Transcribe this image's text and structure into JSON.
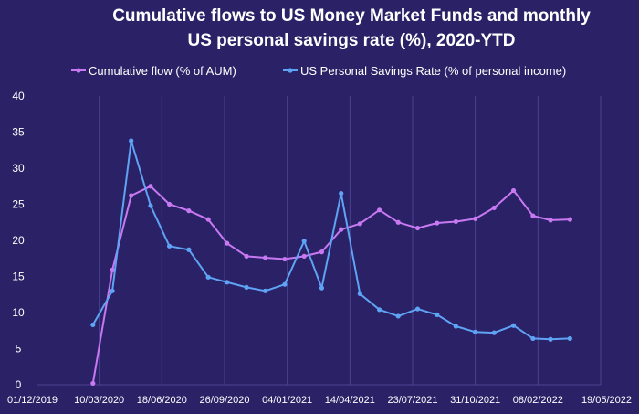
{
  "chart_data": {
    "type": "line",
    "title_lines": [
      "Cumulative flows to US Money Market Funds and monthly",
      "US personal savings rate (%), 2020-YTD"
    ],
    "xlabel": "",
    "ylabel": "",
    "ylim": [
      0,
      40
    ],
    "y_ticks": [
      "0",
      "5",
      "10",
      "15",
      "20",
      "25",
      "30",
      "35",
      "40"
    ],
    "x_tick_labels": [
      "01/12/2019",
      "10/03/2020",
      "18/06/2020",
      "26/09/2020",
      "04/01/2021",
      "14/04/2021",
      "23/07/2021",
      "31/10/2021",
      "08/02/2022",
      "19/05/2022"
    ],
    "x_range": [
      "2019-12-01",
      "2022-05-19"
    ],
    "grid": "vertical",
    "legend_position": "top",
    "series": [
      {
        "name": "Cumulative flow  (% of AUM)",
        "color": "#c879f2",
        "points": [
          [
            "2020-02-29",
            0.2
          ],
          [
            "2020-03-31",
            15.9
          ],
          [
            "2020-04-30",
            26.2
          ],
          [
            "2020-05-31",
            27.5
          ],
          [
            "2020-06-30",
            25.0
          ],
          [
            "2020-07-31",
            24.1
          ],
          [
            "2020-08-31",
            22.9
          ],
          [
            "2020-09-30",
            19.6
          ],
          [
            "2020-10-31",
            17.8
          ],
          [
            "2020-11-30",
            17.6
          ],
          [
            "2020-12-31",
            17.4
          ],
          [
            "2021-01-31",
            17.8
          ],
          [
            "2021-02-28",
            18.4
          ],
          [
            "2021-03-31",
            21.5
          ],
          [
            "2021-04-30",
            22.3
          ],
          [
            "2021-05-31",
            24.2
          ],
          [
            "2021-06-30",
            22.5
          ],
          [
            "2021-07-31",
            21.7
          ],
          [
            "2021-08-31",
            22.4
          ],
          [
            "2021-09-30",
            22.6
          ],
          [
            "2021-10-31",
            23.0
          ],
          [
            "2021-11-30",
            24.5
          ],
          [
            "2021-12-31",
            26.9
          ],
          [
            "2022-01-31",
            23.4
          ],
          [
            "2022-02-28",
            22.8
          ],
          [
            "2022-03-31",
            22.9
          ]
        ]
      },
      {
        "name": "US Personal Savings Rate (% of personal income)",
        "color": "#5fa3f5",
        "points": [
          [
            "2020-02-29",
            8.3
          ],
          [
            "2020-03-31",
            13.0
          ],
          [
            "2020-04-30",
            33.8
          ],
          [
            "2020-05-31",
            24.8
          ],
          [
            "2020-06-30",
            19.2
          ],
          [
            "2020-07-31",
            18.7
          ],
          [
            "2020-08-31",
            14.9
          ],
          [
            "2020-09-30",
            14.2
          ],
          [
            "2020-10-31",
            13.5
          ],
          [
            "2020-11-30",
            13.0
          ],
          [
            "2020-12-31",
            13.9
          ],
          [
            "2021-01-31",
            19.9
          ],
          [
            "2021-02-28",
            13.4
          ],
          [
            "2021-03-31",
            26.5
          ],
          [
            "2021-04-30",
            12.6
          ],
          [
            "2021-05-31",
            10.4
          ],
          [
            "2021-06-30",
            9.5
          ],
          [
            "2021-07-31",
            10.5
          ],
          [
            "2021-08-31",
            9.7
          ],
          [
            "2021-09-30",
            8.1
          ],
          [
            "2021-10-31",
            7.3
          ],
          [
            "2021-11-30",
            7.2
          ],
          [
            "2021-12-31",
            8.2
          ],
          [
            "2022-01-31",
            6.4
          ],
          [
            "2022-02-28",
            6.3
          ],
          [
            "2022-03-31",
            6.4
          ]
        ]
      }
    ]
  }
}
